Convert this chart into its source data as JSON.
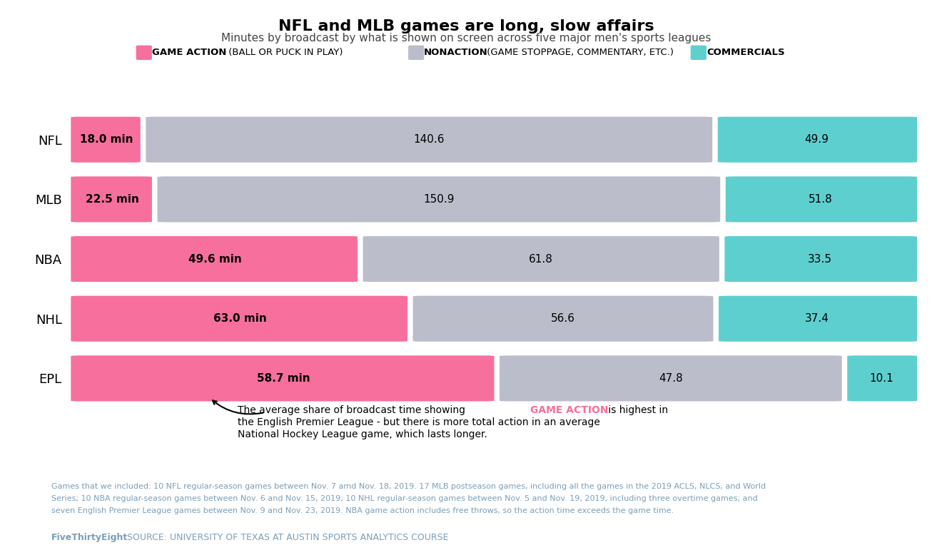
{
  "title": "NFL and MLB games are long, slow affairs",
  "subtitle": "Minutes by broadcast by what is shown on screen across five major men's sports leagues",
  "leagues": [
    "NFL",
    "MLB",
    "NBA",
    "NHL",
    "EPL"
  ],
  "game_action": [
    18.0,
    22.5,
    49.6,
    63.0,
    58.7
  ],
  "nonaction": [
    140.6,
    150.9,
    61.8,
    56.6,
    47.8
  ],
  "commercials": [
    49.9,
    51.8,
    33.5,
    37.4,
    10.1
  ],
  "color_action": "#F76F9D",
  "color_nonaction": "#BBBECA",
  "color_commercials": "#5ECFCF",
  "background_color": "#FFFFFF",
  "label_action_bold": "GAME ACTION",
  "label_action_rest": " (BALL OR PUCK IN PLAY)",
  "label_nonaction_bold": "NONACTION",
  "label_nonaction_rest": " (GAME STOPPAGE, COMMENTARY, ETC.)",
  "label_commercials": "COMMERCIALS",
  "footnote_line1": "Games that we included: 10 NFL regular-season games between Nov. 7 amd Nov. 18, 2019. 17 MLB postseason games, including all the games in the 2019 ACLS, NLCS, and World",
  "footnote_line2": "Series; 10 NBA regular-season games between Nov. 6 and Nov. 15, 2019; 10 NHL regular-season games between Nov. 5 and Nov. 19, 2019, including three overtime games; and",
  "footnote_line3": "seven English Premier League games between Nov. 9 and Nov. 23, 2019. NBA game action includes free throws, so the action time exceeds the game time.",
  "source_bold": "FiveThirtyEight",
  "source_rest": " SOURCE: UNIVERSITY OF TEXAS AT AUSTIN SPORTS ANALYTICS COURSE",
  "text_color_footnote": "#7B9EB8"
}
